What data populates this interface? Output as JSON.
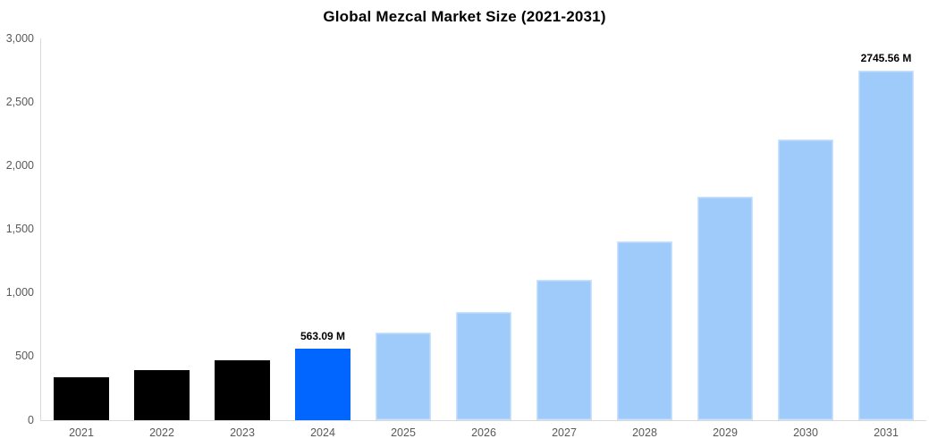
{
  "chart_data": {
    "type": "bar",
    "title": "Global Mezcal Market Size (2021-2031)",
    "value_unit": "M",
    "categories": [
      "2021",
      "2022",
      "2023",
      "2024",
      "2025",
      "2026",
      "2027",
      "2028",
      "2029",
      "2030",
      "2031"
    ],
    "values": [
      335,
      397,
      472,
      563.09,
      686,
      853,
      1104,
      1405,
      1760,
      2205,
      2745.56
    ],
    "roles": [
      "historical",
      "historical",
      "historical",
      "highlight",
      "forecast",
      "forecast",
      "forecast",
      "forecast",
      "forecast",
      "forecast",
      "forecast"
    ],
    "bar_labels": [
      "",
      "",
      "",
      "563.09 M",
      "",
      "",
      "",
      "",
      "",
      "",
      "2745.56 M"
    ],
    "colors": {
      "historical": "#000000",
      "highlight": "#0066FF",
      "forecast": "#9ECBFA"
    },
    "ylim": [
      0,
      3000
    ],
    "y_ticks": [
      3000,
      2500,
      2000,
      1500,
      1000,
      500,
      0
    ],
    "y_tick_labels": [
      "3,000",
      "2,500",
      "2,000",
      "1,500",
      "1,000",
      "500",
      "0"
    ],
    "xlabel": "",
    "ylabel": "",
    "grid": false,
    "legend": false,
    "axis_line_color": "#D9D9D9",
    "tick_label_color": "#595959",
    "title_color": "#000000"
  }
}
